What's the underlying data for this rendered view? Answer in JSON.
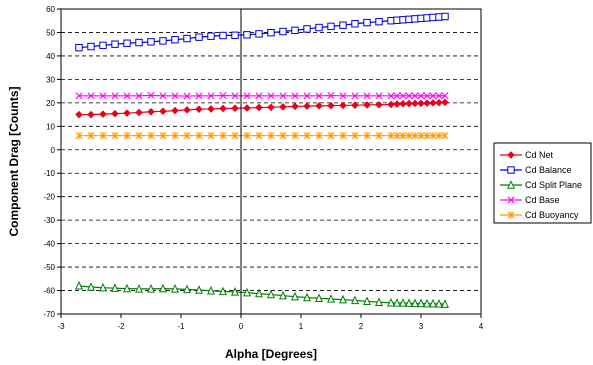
{
  "chart_data": {
    "type": "line",
    "title": "",
    "xlabel": "Alpha [Degrees]",
    "ylabel": "Component Drag [Counts]",
    "xlim": [
      -3,
      4
    ],
    "ylim": [
      -70,
      60
    ],
    "x_ticks": [
      -3,
      -2,
      -1,
      0,
      1,
      2,
      3,
      4
    ],
    "y_ticks": [
      -70,
      -60,
      -50,
      -40,
      -30,
      -20,
      -10,
      0,
      10,
      20,
      30,
      40,
      50,
      60
    ],
    "grid": "horizontal-dashed",
    "legend_position": "right",
    "x": [
      -2.7,
      -2.5,
      -2.3,
      -2.1,
      -1.9,
      -1.7,
      -1.5,
      -1.3,
      -1.1,
      -0.9,
      -0.7,
      -0.5,
      -0.3,
      -0.1,
      0.1,
      0.3,
      0.5,
      0.7,
      0.9,
      1.1,
      1.3,
      1.5,
      1.7,
      1.9,
      2.1,
      2.3,
      2.5,
      2.6,
      2.7,
      2.8,
      2.9,
      3.0,
      3.1,
      3.2,
      3.3,
      3.4
    ],
    "series": [
      {
        "name": "Cd Net",
        "color": "#e8001c",
        "marker": "diamond",
        "values": [
          15,
          15,
          15.2,
          15.4,
          15.6,
          15.9,
          16.2,
          16.4,
          16.7,
          17,
          17.3,
          17.4,
          17.6,
          17.7,
          17.8,
          18,
          18.1,
          18.3,
          18.5,
          18.6,
          18.7,
          18.8,
          18.9,
          19,
          19.1,
          19.2,
          19.3,
          19.5,
          19.6,
          19.7,
          19.8,
          19.8,
          19.9,
          20,
          20.1,
          20.2
        ]
      },
      {
        "name": "Cd Balance",
        "color": "#0000e0",
        "marker": "square",
        "values": [
          43.5,
          44,
          44.5,
          45,
          45.4,
          45.7,
          46,
          46.4,
          46.9,
          47.4,
          48,
          48.4,
          48.7,
          48.8,
          49,
          49.4,
          49.9,
          50.4,
          50.9,
          51.5,
          52.1,
          52.6,
          53.1,
          53.7,
          54.2,
          54.6,
          55,
          55.2,
          55.4,
          55.6,
          55.8,
          56,
          56.2,
          56.4,
          56.6,
          56.8
        ]
      },
      {
        "name": "Cd Split Plane",
        "color": "#007f00",
        "marker": "triangle",
        "values": [
          -58,
          -58.5,
          -58.8,
          -59,
          -59.2,
          -59.3,
          -59.3,
          -59.2,
          -59.3,
          -59.5,
          -59.8,
          -60.1,
          -60.4,
          -60.6,
          -60.9,
          -61.3,
          -61.7,
          -62.2,
          -62.6,
          -63,
          -63.3,
          -63.6,
          -63.9,
          -64.2,
          -64.6,
          -65,
          -65.2,
          -65.3,
          -65.3,
          -65.4,
          -65.5,
          -65.5,
          -65.6,
          -65.6,
          -65.7,
          -65.8
        ]
      },
      {
        "name": "Cd Base",
        "color": "#ff00ff",
        "marker": "x",
        "values": [
          23,
          23,
          23,
          23,
          23,
          23,
          23.2,
          23,
          23,
          22.9,
          23,
          23,
          23.1,
          23,
          23,
          23,
          23,
          23,
          23,
          23,
          23,
          23.1,
          23,
          23,
          23,
          23,
          23,
          23,
          23,
          23,
          23,
          23,
          23,
          23,
          23,
          23
        ]
      },
      {
        "name": "Cd Buoyancy",
        "color": "#ff9900",
        "marker": "asterisk",
        "values": [
          6,
          6,
          6,
          6,
          6,
          6,
          6,
          6,
          6,
          6,
          6,
          6,
          6,
          6,
          6,
          6,
          6,
          6,
          6,
          6,
          6,
          6,
          6,
          6,
          6,
          6,
          6,
          6,
          6,
          6,
          6,
          6,
          6,
          6,
          6,
          6
        ]
      }
    ]
  }
}
